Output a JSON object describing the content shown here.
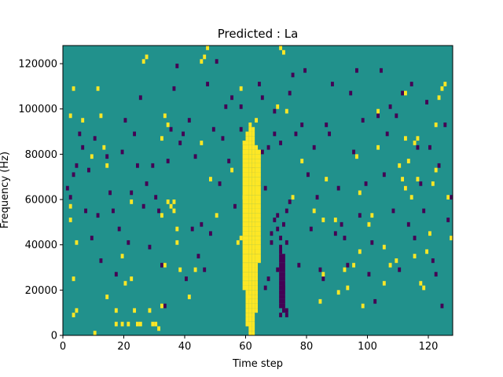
{
  "chart_data": {
    "type": "heatmap",
    "title": "Predicted : La",
    "xlabel": "Time step",
    "ylabel": "Frequency (Hz)",
    "xlim": [
      0,
      128
    ],
    "ylim": [
      0,
      128000
    ],
    "x_ticks": [
      0,
      20,
      40,
      60,
      80,
      100,
      120
    ],
    "y_ticks": [
      0,
      20000,
      40000,
      60000,
      80000,
      100000,
      120000
    ],
    "y_tick_labels": [
      "0",
      "20000",
      "40000",
      "60000",
      "80000",
      "100000",
      "120000"
    ],
    "grid": false,
    "legend": "none",
    "n_time_steps": 128,
    "n_frequency_bins": 64,
    "bin_width_hz": 2000,
    "colors": {
      "background": "#21918c",
      "low": "#440154",
      "high": "#fde725"
    },
    "cells_high": [
      [
        2,
        48
      ],
      [
        3,
        54
      ],
      [
        6,
        47
      ],
      [
        2,
        28
      ],
      [
        2,
        25
      ],
      [
        4,
        20
      ],
      [
        3,
        12
      ],
      [
        4,
        5
      ],
      [
        3,
        4
      ],
      [
        10,
        0
      ],
      [
        9,
        39
      ],
      [
        11,
        54
      ],
      [
        12,
        48
      ],
      [
        13,
        41
      ],
      [
        14,
        37
      ],
      [
        14,
        8
      ],
      [
        17,
        2
      ],
      [
        19,
        17
      ],
      [
        17,
        5
      ],
      [
        20,
        11
      ],
      [
        19,
        2
      ],
      [
        21,
        2
      ],
      [
        22,
        12
      ],
      [
        23,
        5
      ],
      [
        22,
        29
      ],
      [
        24,
        2
      ],
      [
        25,
        2
      ],
      [
        28,
        5
      ],
      [
        29,
        2
      ],
      [
        30,
        2
      ],
      [
        31,
        1
      ],
      [
        32,
        43
      ],
      [
        32,
        6
      ],
      [
        33,
        48
      ],
      [
        32,
        26
      ],
      [
        33,
        15
      ],
      [
        34,
        46
      ],
      [
        34,
        29
      ],
      [
        35,
        28
      ],
      [
        36,
        27
      ],
      [
        37,
        20
      ],
      [
        37,
        23
      ],
      [
        36,
        29
      ],
      [
        45,
        42
      ],
      [
        48,
        34
      ],
      [
        50,
        26
      ],
      [
        55,
        36
      ],
      [
        58,
        54
      ],
      [
        59,
        30
      ],
      [
        60,
        2
      ],
      [
        60,
        8
      ],
      [
        63,
        47
      ],
      [
        70,
        50
      ],
      [
        73,
        49
      ],
      [
        75,
        30
      ],
      [
        78,
        38
      ],
      [
        82,
        27
      ],
      [
        84,
        7
      ],
      [
        85,
        25
      ],
      [
        85,
        13
      ],
      [
        86,
        34
      ],
      [
        89,
        25
      ],
      [
        90,
        9
      ],
      [
        92,
        14
      ],
      [
        93,
        10
      ],
      [
        95,
        15
      ],
      [
        97,
        18
      ],
      [
        98,
        6
      ],
      [
        100,
        24
      ],
      [
        101,
        26
      ],
      [
        103,
        41
      ],
      [
        103,
        49
      ],
      [
        105,
        19
      ],
      [
        105,
        11
      ],
      [
        107,
        15
      ],
      [
        109,
        16
      ],
      [
        110,
        37
      ],
      [
        111,
        34
      ],
      [
        112,
        32
      ],
      [
        112,
        43
      ],
      [
        112,
        53
      ],
      [
        113,
        38
      ],
      [
        114,
        30
      ],
      [
        115,
        17
      ],
      [
        116,
        34
      ],
      [
        117,
        11
      ],
      [
        118,
        10
      ],
      [
        119,
        18
      ],
      [
        120,
        22
      ],
      [
        121,
        33
      ],
      [
        122,
        36
      ],
      [
        122,
        46
      ],
      [
        123,
        52
      ],
      [
        124,
        54
      ],
      [
        125,
        55
      ],
      [
        126,
        30
      ],
      [
        127,
        21
      ],
      [
        26,
        60
      ],
      [
        27,
        61
      ],
      [
        38,
        14
      ],
      [
        41,
        8
      ],
      [
        43,
        14
      ],
      [
        45,
        60
      ],
      [
        46,
        61
      ],
      [
        47,
        63
      ],
      [
        57,
        20
      ],
      [
        58,
        21
      ],
      [
        71,
        63
      ],
      [
        72,
        62
      ],
      [
        96,
        39
      ],
      [
        97,
        31
      ],
      [
        115,
        42
      ],
      [
        116,
        43
      ]
    ],
    "cells_low": [
      [
        1,
        32
      ],
      [
        2,
        30
      ],
      [
        3,
        35
      ],
      [
        4,
        37
      ],
      [
        5,
        44
      ],
      [
        6,
        41
      ],
      [
        7,
        27
      ],
      [
        8,
        36
      ],
      [
        9,
        21
      ],
      [
        10,
        43
      ],
      [
        11,
        26
      ],
      [
        12,
        16
      ],
      [
        14,
        39
      ],
      [
        15,
        31
      ],
      [
        16,
        27
      ],
      [
        17,
        13
      ],
      [
        18,
        23
      ],
      [
        19,
        40
      ],
      [
        20,
        47
      ],
      [
        21,
        20
      ],
      [
        22,
        31
      ],
      [
        23,
        44
      ],
      [
        24,
        37
      ],
      [
        25,
        52
      ],
      [
        26,
        28
      ],
      [
        27,
        33
      ],
      [
        28,
        19
      ],
      [
        29,
        37
      ],
      [
        30,
        30
      ],
      [
        31,
        27
      ],
      [
        32,
        15
      ],
      [
        33,
        6
      ],
      [
        34,
        38
      ],
      [
        35,
        45
      ],
      [
        36,
        54
      ],
      [
        37,
        59
      ],
      [
        38,
        42
      ],
      [
        39,
        44
      ],
      [
        40,
        12
      ],
      [
        41,
        47
      ],
      [
        42,
        23
      ],
      [
        43,
        39
      ],
      [
        44,
        17
      ],
      [
        45,
        24
      ],
      [
        46,
        14
      ],
      [
        47,
        55
      ],
      [
        48,
        22
      ],
      [
        49,
        45
      ],
      [
        50,
        60
      ],
      [
        51,
        33
      ],
      [
        52,
        43
      ],
      [
        53,
        50
      ],
      [
        54,
        38
      ],
      [
        55,
        52
      ],
      [
        56,
        28
      ],
      [
        62,
        36
      ],
      [
        63,
        18
      ],
      [
        64,
        33
      ],
      [
        65,
        40
      ],
      [
        66,
        32
      ],
      [
        67,
        41
      ],
      [
        68,
        22
      ],
      [
        69,
        49
      ],
      [
        70,
        26
      ],
      [
        71,
        42
      ],
      [
        72,
        24
      ],
      [
        73,
        20
      ],
      [
        74,
        53
      ],
      [
        75,
        57
      ],
      [
        76,
        44
      ],
      [
        77,
        15
      ],
      [
        78,
        46
      ],
      [
        79,
        58
      ],
      [
        80,
        35
      ],
      [
        81,
        23
      ],
      [
        82,
        41
      ],
      [
        83,
        30
      ],
      [
        84,
        14
      ],
      [
        85,
        12
      ],
      [
        86,
        46
      ],
      [
        87,
        44
      ],
      [
        88,
        55
      ],
      [
        89,
        22
      ],
      [
        90,
        32
      ],
      [
        91,
        24
      ],
      [
        92,
        21
      ],
      [
        93,
        15
      ],
      [
        94,
        53
      ],
      [
        95,
        40
      ],
      [
        96,
        58
      ],
      [
        97,
        26
      ],
      [
        98,
        47
      ],
      [
        99,
        33
      ],
      [
        100,
        13
      ],
      [
        101,
        20
      ],
      [
        102,
        7
      ],
      [
        103,
        48
      ],
      [
        104,
        58
      ],
      [
        105,
        35
      ],
      [
        106,
        44
      ],
      [
        107,
        50
      ],
      [
        108,
        27
      ],
      [
        109,
        48
      ],
      [
        110,
        14
      ],
      [
        111,
        53
      ],
      [
        112,
        32
      ],
      [
        113,
        24
      ],
      [
        114,
        55
      ],
      [
        115,
        21
      ],
      [
        116,
        41
      ],
      [
        117,
        33
      ],
      [
        118,
        27
      ],
      [
        119,
        51
      ],
      [
        120,
        41
      ],
      [
        121,
        16
      ],
      [
        122,
        13
      ],
      [
        123,
        37
      ],
      [
        124,
        6
      ],
      [
        125,
        46
      ],
      [
        126,
        25
      ],
      [
        127,
        30
      ],
      [
        70,
        23
      ],
      [
        71,
        21
      ],
      [
        70,
        14
      ],
      [
        72,
        10
      ],
      [
        71,
        4
      ],
      [
        72,
        5
      ],
      [
        58,
        50
      ],
      [
        58,
        45
      ],
      [
        59,
        41
      ],
      [
        64,
        55
      ],
      [
        65,
        52
      ],
      [
        66,
        10
      ],
      [
        67,
        12
      ],
      [
        68,
        20
      ],
      [
        69,
        25
      ],
      [
        73,
        27
      ],
      [
        74,
        29
      ],
      [
        69,
        44
      ]
    ],
    "vertical_bands": [
      {
        "x": 59,
        "color": "high",
        "rows": [
          [
            10,
            42
          ]
        ]
      },
      {
        "x": 60,
        "color": "high",
        "rows": [
          [
            2,
            44
          ]
        ]
      },
      {
        "x": 61,
        "color": "high",
        "rows": [
          [
            0,
            46
          ]
        ]
      },
      {
        "x": 62,
        "color": "high",
        "rows": [
          [
            0,
            45
          ]
        ]
      },
      {
        "x": 63,
        "color": "high",
        "rows": [
          [
            5,
            41
          ]
        ]
      },
      {
        "x": 64,
        "color": "high",
        "rows": [
          [
            16,
            40
          ]
        ]
      },
      {
        "x": 71,
        "color": "low",
        "rows": [
          [
            6,
            19
          ]
        ]
      },
      {
        "x": 72,
        "color": "low",
        "rows": [
          [
            6,
            17
          ]
        ]
      },
      {
        "x": 73,
        "color": "low",
        "rows": [
          [
            4,
            5
          ]
        ]
      }
    ]
  }
}
